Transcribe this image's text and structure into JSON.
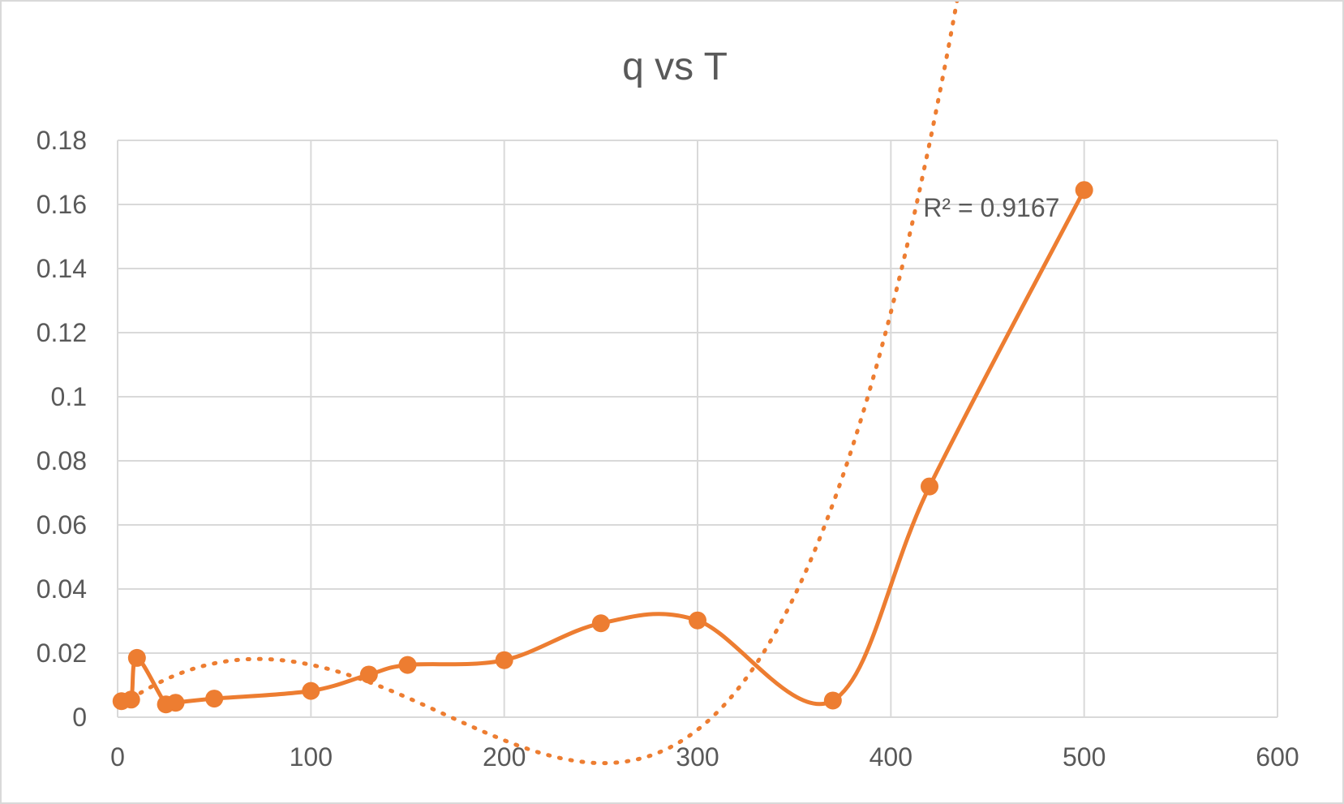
{
  "chart_data": {
    "type": "scatter",
    "title": "q vs T",
    "xlabel": "",
    "ylabel": "",
    "xlim": [
      0,
      600
    ],
    "ylim": [
      0,
      0.18
    ],
    "x_ticks": [
      "0",
      "100",
      "200",
      "300",
      "400",
      "500",
      "600"
    ],
    "y_ticks": [
      "0",
      "0.02",
      "0.04",
      "0.06",
      "0.08",
      "0.1",
      "0.12",
      "0.14",
      "0.16",
      "0.18"
    ],
    "grid": true,
    "legend": "none",
    "series": [
      {
        "color": "#ed7d31",
        "line": "smooth",
        "markers": true,
        "points": [
          {
            "x": 2,
            "y": 0.005
          },
          {
            "x": 7,
            "y": 0.0055
          },
          {
            "x": 10,
            "y": 0.0185
          },
          {
            "x": 25,
            "y": 0.004
          },
          {
            "x": 30,
            "y": 0.0045
          },
          {
            "x": 50,
            "y": 0.0058
          },
          {
            "x": 100,
            "y": 0.0082
          },
          {
            "x": 130,
            "y": 0.0133
          },
          {
            "x": 150,
            "y": 0.0163
          },
          {
            "x": 200,
            "y": 0.0178
          },
          {
            "x": 250,
            "y": 0.0293
          },
          {
            "x": 300,
            "y": 0.0302
          },
          {
            "x": 370,
            "y": 0.0052
          },
          {
            "x": 420,
            "y": 0.072
          },
          {
            "x": 500,
            "y": 0.1645
          }
        ]
      }
    ],
    "trendline": {
      "type": "polynomial",
      "style": "dotted",
      "color": "#ed7d31",
      "coefficients": [
        0.0028,
        0.0004436,
        -3.392e-06,
        1.6e-09,
        1.5096e-11
      ],
      "x_range": [
        2,
        500
      ],
      "annotation": "R² = 0.9167",
      "annotation_at": {
        "x": 395,
        "y": 0.159
      }
    }
  }
}
